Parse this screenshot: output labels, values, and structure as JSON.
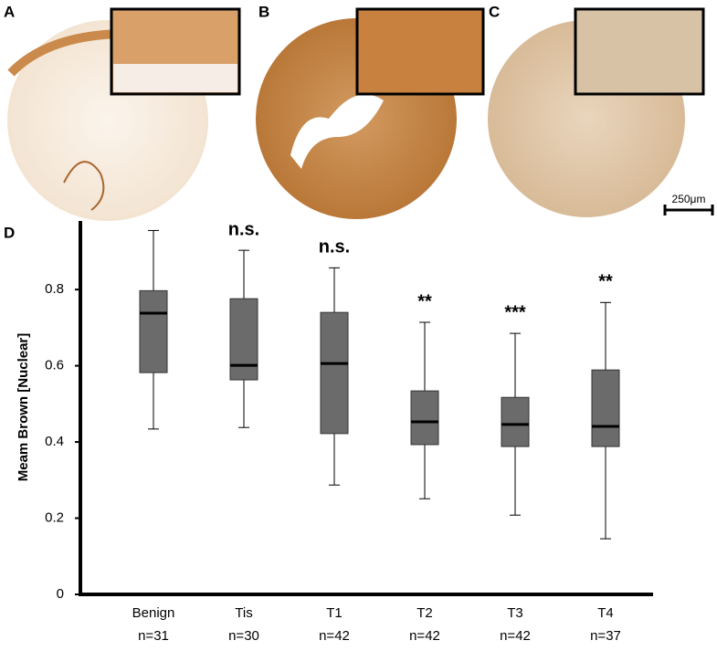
{
  "panels": {
    "labels": [
      "A",
      "B",
      "C"
    ],
    "scale_bar": "250μm"
  },
  "chart_data": {
    "type": "box",
    "panel_label": "D",
    "ylabel": "Meam Brown [Nuclear]",
    "categories": [
      "Benign",
      "Tis",
      "T1",
      "T2",
      "T3",
      "T4"
    ],
    "sample_sizes": [
      "n=31",
      "n=30",
      "n=42",
      "n=42",
      "n=42",
      "n=37"
    ],
    "significance": [
      null,
      "n.s.",
      "n.s.",
      "**",
      "***",
      "**"
    ],
    "whisker_low": [
      0.434,
      0.438,
      0.287,
      0.251,
      0.208,
      0.146
    ],
    "q1": [
      0.582,
      0.563,
      0.422,
      0.393,
      0.388,
      0.388
    ],
    "median": [
      0.738,
      0.601,
      0.606,
      0.453,
      0.446,
      0.441
    ],
    "q3": [
      0.797,
      0.776,
      0.74,
      0.534,
      0.517,
      0.589
    ],
    "whisker_high": [
      0.955,
      0.903,
      0.857,
      0.714,
      0.685,
      0.766
    ],
    "color": "#6b6b6b",
    "ylim": [
      0,
      0.98
    ],
    "yticks": [
      0,
      0.2,
      0.4,
      0.6,
      0.8
    ]
  }
}
